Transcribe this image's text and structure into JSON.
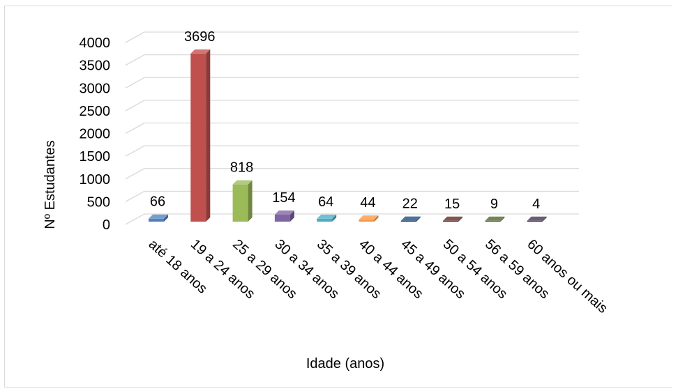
{
  "chart_data": {
    "type": "bar",
    "style": "3d-column",
    "categories": [
      "até 18 anos",
      "19 a 24 anos",
      "25 a 29 anos",
      "30 a 34 anos",
      "35 a 39 anos",
      "40 a 44 anos",
      "45 a 49 anos",
      "50 a 54 anos",
      "56 a 59 anos",
      "60 anos ou mais"
    ],
    "values": [
      66,
      3696,
      818,
      154,
      64,
      44,
      22,
      15,
      9,
      4
    ],
    "data_labels": [
      "66",
      "3696",
      "818",
      "154",
      "64",
      "44",
      "22",
      "15",
      "9",
      "4"
    ],
    "colors": [
      "#4f81bd",
      "#c0504d",
      "#9bbb59",
      "#8064a2",
      "#4bacc6",
      "#f79646",
      "#1f497d",
      "#632523",
      "#4f6228",
      "#403151"
    ],
    "xlabel": "Idade (anos)",
    "ylabel": "Nº Estudantes",
    "ylim": [
      0,
      4000
    ],
    "yticks": [
      "0",
      "500",
      "1000",
      "1500",
      "2000",
      "2500",
      "3000",
      "3500",
      "4000"
    ],
    "grid": true,
    "legend": "none"
  }
}
